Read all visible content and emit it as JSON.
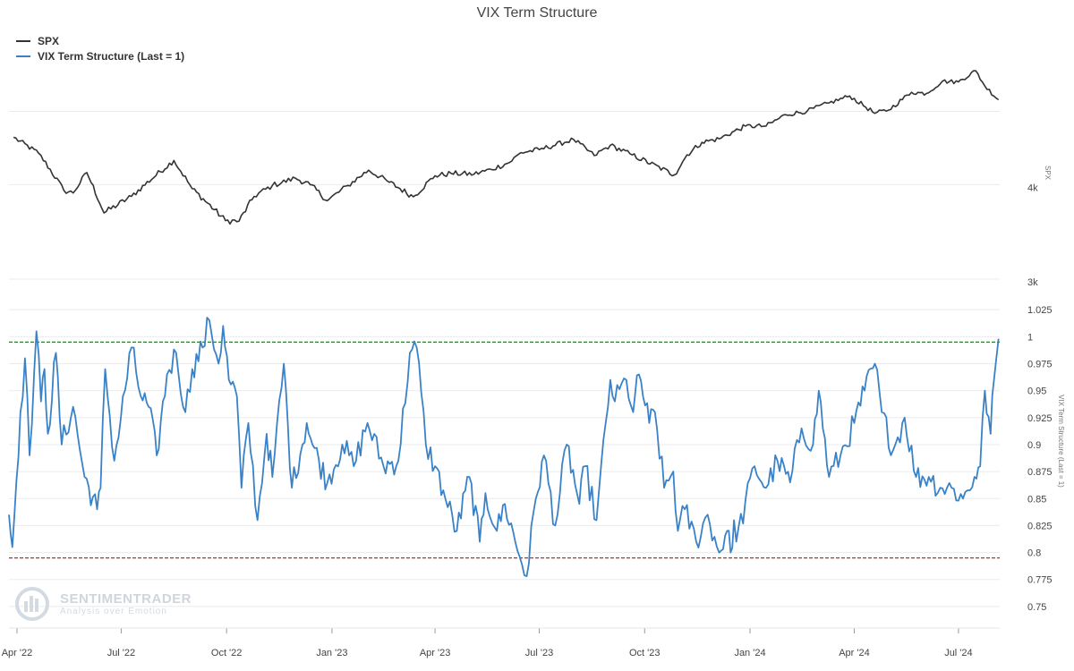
{
  "chart_data": {
    "type": "line",
    "title": "VIX Term Structure",
    "x_ticks": [
      "Apr '22",
      "Jul '22",
      "Oct '22",
      "Jan '23",
      "Apr '23",
      "Jul '23",
      "Oct '23",
      "Jan '24",
      "Apr '24",
      "Jul '24"
    ],
    "x_range": [
      "2022-03-25",
      "2024-08-06"
    ],
    "panels": [
      {
        "series_name": "SPX",
        "color": "#333333",
        "y_axis_title": "SPX",
        "scale": "log",
        "y_range": [
          3000,
          5800
        ],
        "y_tick_labels": [
          "3k",
          "4k"
        ],
        "x": [
          "2022-03-29",
          "2022-04-20",
          "2022-05-12",
          "2022-05-20",
          "2022-06-01",
          "2022-06-16",
          "2022-07-10",
          "2022-08-16",
          "2022-09-01",
          "2022-09-30",
          "2022-10-12",
          "2022-10-25",
          "2022-11-10",
          "2022-11-30",
          "2022-12-13",
          "2022-12-28",
          "2023-01-15",
          "2023-02-02",
          "2023-02-20",
          "2023-03-13",
          "2023-04-01",
          "2023-04-15",
          "2023-05-05",
          "2023-05-20",
          "2023-06-05",
          "2023-06-15",
          "2023-07-01",
          "2023-07-31",
          "2023-08-18",
          "2023-09-01",
          "2023-09-20",
          "2023-10-27",
          "2023-11-07",
          "2023-11-20",
          "2023-12-05",
          "2023-12-28",
          "2024-01-15",
          "2024-02-01",
          "2024-02-20",
          "2024-03-10",
          "2024-03-28",
          "2024-04-19",
          "2024-05-01",
          "2024-05-21",
          "2024-06-03",
          "2024-06-17",
          "2024-07-01",
          "2024-07-16",
          "2024-07-24",
          "2024-08-05"
        ],
        "values": [
          4620,
          4400,
          3930,
          3900,
          4150,
          3670,
          3860,
          4305,
          3950,
          3585,
          3580,
          3860,
          3990,
          4080,
          4000,
          3810,
          3990,
          4180,
          4030,
          3855,
          4110,
          4140,
          4130,
          4190,
          4280,
          4410,
          4450,
          4590,
          4370,
          4510,
          4380,
          4120,
          4380,
          4550,
          4600,
          4780,
          4780,
          4950,
          5005,
          5130,
          5240,
          4970,
          5020,
          5300,
          5280,
          5480,
          5470,
          5660,
          5400,
          5180
        ]
      },
      {
        "series_name": "VIX Term Structure (Last = 1)",
        "color": "#3a82c8",
        "y_axis_title": "VIX Term Structure (Last = 1)",
        "y_range": [
          0.73,
          1.05
        ],
        "y_tick_labels": [
          "0.75",
          "0.775",
          "0.8",
          "0.825",
          "0.85",
          "0.875",
          "0.9",
          "0.925",
          "0.95",
          "0.975",
          "1",
          "1.025"
        ],
        "reference_lines": [
          {
            "value": 0.995,
            "color": "#2e7d32",
            "style": "dashed"
          },
          {
            "value": 0.795,
            "color": "#c62828",
            "style": "dashed"
          }
        ],
        "x": [
          "2022-03-25",
          "2022-03-28",
          "2022-04-04",
          "2022-04-08",
          "2022-04-12",
          "2022-04-18",
          "2022-04-22",
          "2022-04-25",
          "2022-04-28",
          "2022-05-05",
          "2022-05-10",
          "2022-05-20",
          "2022-05-30",
          "2022-06-10",
          "2022-06-13",
          "2022-06-17",
          "2022-06-25",
          "2022-07-10",
          "2022-07-18",
          "2022-07-25",
          "2022-08-01",
          "2022-08-10",
          "2022-08-18",
          "2022-08-26",
          "2022-09-01",
          "2022-09-10",
          "2022-09-16",
          "2022-09-24",
          "2022-09-28",
          "2022-10-03",
          "2022-10-10",
          "2022-10-14",
          "2022-10-20",
          "2022-10-28",
          "2022-11-05",
          "2022-11-10",
          "2022-11-20",
          "2022-11-27",
          "2022-12-10",
          "2022-12-15",
          "2022-12-28",
          "2023-01-10",
          "2023-01-20",
          "2023-02-01",
          "2023-02-15",
          "2023-02-28",
          "2023-03-10",
          "2023-03-16",
          "2023-03-24",
          "2023-04-01",
          "2023-04-10",
          "2023-04-20",
          "2023-05-01",
          "2023-05-10",
          "2023-05-15",
          "2023-05-25",
          "2023-06-01",
          "2023-06-10",
          "2023-06-20",
          "2023-06-28",
          "2023-07-05",
          "2023-07-15",
          "2023-07-25",
          "2023-08-05",
          "2023-08-10",
          "2023-08-20",
          "2023-09-01",
          "2023-09-05",
          "2023-09-15",
          "2023-09-21",
          "2023-09-26",
          "2023-10-05",
          "2023-10-10",
          "2023-10-18",
          "2023-10-26",
          "2023-10-30",
          "2023-11-05",
          "2023-11-15",
          "2023-11-25",
          "2023-12-05",
          "2023-12-12",
          "2023-12-15",
          "2023-12-18",
          "2023-12-20",
          "2024-01-05",
          "2024-01-15",
          "2024-01-25",
          "2024-02-05",
          "2024-02-15",
          "2024-02-25",
          "2024-03-01",
          "2024-03-10",
          "2024-03-20",
          "2024-04-01",
          "2024-04-10",
          "2024-04-19",
          "2024-04-25",
          "2024-05-05",
          "2024-05-15",
          "2024-05-25",
          "2024-06-05",
          "2024-06-15",
          "2024-06-25",
          "2024-07-05",
          "2024-07-15",
          "2024-07-20",
          "2024-07-24",
          "2024-07-29",
          "2024-08-01",
          "2024-08-05"
        ],
        "values": [
          0.835,
          0.805,
          0.93,
          0.98,
          0.89,
          1.005,
          0.94,
          0.97,
          0.91,
          0.985,
          0.9,
          0.935,
          0.87,
          0.84,
          0.86,
          0.97,
          0.885,
          0.99,
          0.945,
          0.935,
          0.89,
          0.965,
          0.985,
          0.93,
          0.97,
          0.99,
          1.015,
          0.975,
          1.01,
          0.96,
          0.945,
          0.86,
          0.92,
          0.83,
          0.91,
          0.87,
          0.975,
          0.86,
          0.92,
          0.9,
          0.865,
          0.9,
          0.88,
          0.92,
          0.88,
          0.885,
          0.985,
          0.99,
          0.9,
          0.88,
          0.85,
          0.82,
          0.87,
          0.81,
          0.855,
          0.82,
          0.845,
          0.81,
          0.778,
          0.85,
          0.89,
          0.825,
          0.9,
          0.845,
          0.88,
          0.83,
          0.96,
          0.94,
          0.96,
          0.93,
          0.965,
          0.92,
          0.93,
          0.86,
          0.875,
          0.82,
          0.84,
          0.81,
          0.835,
          0.8,
          0.82,
          0.8,
          0.83,
          0.81,
          0.88,
          0.86,
          0.885,
          0.865,
          0.915,
          0.9,
          0.95,
          0.87,
          0.89,
          0.92,
          0.95,
          0.975,
          0.93,
          0.895,
          0.925,
          0.87,
          0.87,
          0.86,
          0.86,
          0.85,
          0.87,
          0.88,
          0.95,
          0.91,
          0.96,
          0.998
        ]
      }
    ]
  },
  "watermark": {
    "name": "SENTIMENTRADER",
    "tagline": "Analysis over Emotion"
  }
}
